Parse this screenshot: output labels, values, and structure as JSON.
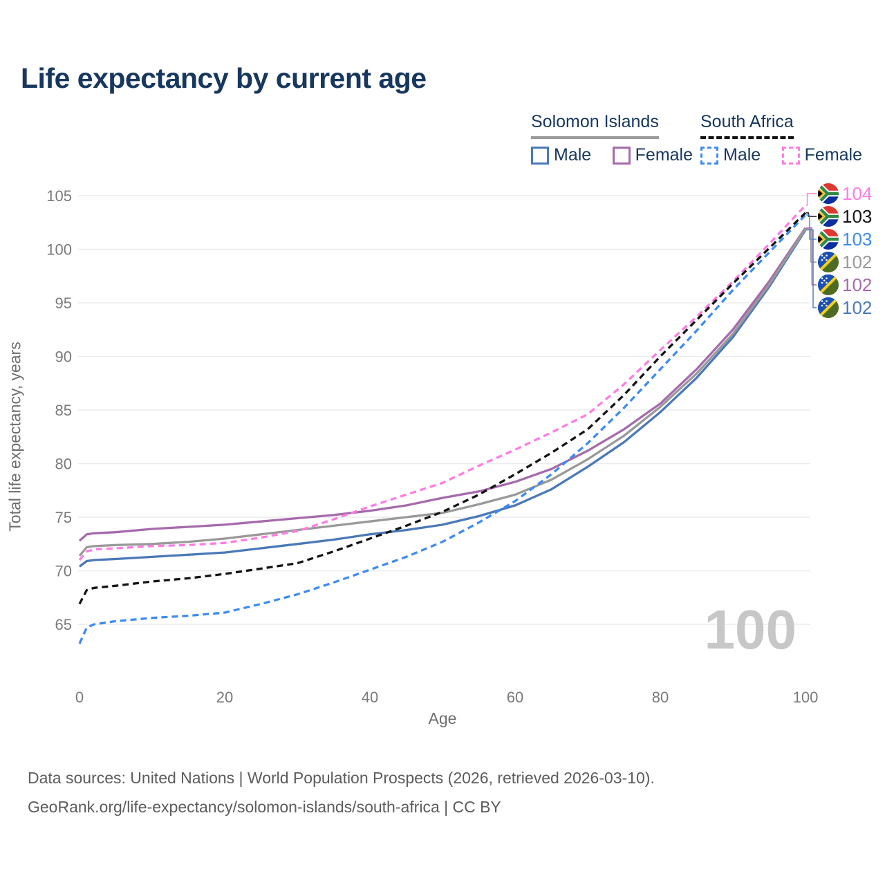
{
  "header": {
    "title": "Life expectancy by current age"
  },
  "legend": {
    "solomon_islands": {
      "title": "Solomon Islands",
      "male": "Male",
      "female": "Female"
    },
    "south_africa": {
      "title": "South Africa",
      "male": "Male",
      "female": "Female"
    }
  },
  "colors": {
    "title": "#17375e",
    "grid": "#ececec",
    "tick_text": "#7a7a7a",
    "watermark": "#c7c7c7",
    "si_male": "#4a79b8",
    "si_female": "#a66aac",
    "si_total": "#999999",
    "sa_male": "#3d8bf2",
    "sa_female": "#ff7ce3",
    "sa_total": "#141414"
  },
  "chart_data": {
    "type": "line",
    "title": "Life expectancy by current age",
    "xlabel": "Age",
    "ylabel": "Total life expectancy, years",
    "xlim": [
      0,
      100
    ],
    "ylim": [
      63,
      105.5
    ],
    "x_ticks": [
      0,
      20,
      40,
      60,
      80,
      100
    ],
    "y_ticks": [
      65,
      70,
      75,
      80,
      85,
      90,
      95,
      100,
      105
    ],
    "grid": "horizontal",
    "legend_position": "top-right",
    "age_watermark": "100",
    "x": [
      0,
      1,
      2,
      5,
      10,
      15,
      20,
      25,
      30,
      35,
      40,
      45,
      50,
      55,
      60,
      65,
      70,
      75,
      80,
      85,
      90,
      95,
      100
    ],
    "series": [
      {
        "id": "si_male",
        "name": "Solomon Islands — Male",
        "country": "solomon-islands",
        "sex": "male",
        "style": "solid",
        "color": "#4a79b8",
        "end_label": "102",
        "values": [
          70.4,
          70.9,
          71.0,
          71.1,
          71.3,
          71.5,
          71.7,
          72.1,
          72.5,
          72.9,
          73.4,
          73.8,
          74.3,
          75.1,
          76.1,
          77.6,
          79.7,
          82.0,
          84.8,
          88.0,
          91.8,
          96.5,
          101.8
        ]
      },
      {
        "id": "si_female",
        "name": "Solomon Islands — Female",
        "country": "solomon-islands",
        "sex": "female",
        "style": "solid",
        "color": "#a66aac",
        "end_label": "102",
        "values": [
          72.8,
          73.4,
          73.5,
          73.6,
          73.9,
          74.1,
          74.3,
          74.6,
          74.9,
          75.2,
          75.6,
          76.1,
          76.8,
          77.4,
          78.3,
          79.5,
          81.2,
          83.2,
          85.6,
          88.8,
          92.5,
          97.0,
          102.0
        ]
      },
      {
        "id": "si_total",
        "name": "Solomon Islands — Total",
        "country": "solomon-islands",
        "sex": "total",
        "style": "solid",
        "color": "#999999",
        "end_label": "102",
        "values": [
          71.4,
          72.2,
          72.3,
          72.4,
          72.5,
          72.7,
          73.0,
          73.4,
          73.8,
          74.2,
          74.6,
          75.0,
          75.4,
          76.2,
          77.1,
          78.5,
          80.4,
          82.6,
          85.3,
          88.4,
          92.1,
          96.7,
          101.9
        ]
      },
      {
        "id": "sa_male",
        "name": "South Africa — Male",
        "country": "south-africa",
        "sex": "male",
        "style": "dashed",
        "color": "#3d8bf2",
        "end_label": "103",
        "values": [
          63.2,
          64.7,
          65.0,
          65.3,
          65.6,
          65.8,
          66.1,
          66.9,
          67.8,
          68.9,
          70.1,
          71.3,
          72.7,
          74.5,
          76.5,
          79.0,
          81.9,
          85.2,
          88.8,
          92.4,
          96.2,
          99.7,
          103.2
        ]
      },
      {
        "id": "sa_female",
        "name": "South Africa — Female",
        "country": "south-africa",
        "sex": "female",
        "style": "dashed",
        "color": "#ff7ce3",
        "end_label": "104",
        "values": [
          71.0,
          71.8,
          72.0,
          72.1,
          72.3,
          72.4,
          72.6,
          73.1,
          73.7,
          74.8,
          76.0,
          77.1,
          78.2,
          79.8,
          81.3,
          82.9,
          84.6,
          87.4,
          90.6,
          93.7,
          97.0,
          100.5,
          104.1
        ]
      },
      {
        "id": "sa_total",
        "name": "South Africa — Total",
        "country": "south-africa",
        "sex": "total",
        "style": "dashed",
        "color": "#141414",
        "end_label": "103",
        "values": [
          66.9,
          68.2,
          68.4,
          68.6,
          69.0,
          69.3,
          69.7,
          70.2,
          70.7,
          71.8,
          73.0,
          74.2,
          75.5,
          77.1,
          79.0,
          81.0,
          83.2,
          86.4,
          90.0,
          93.4,
          96.8,
          100.1,
          103.4
        ]
      }
    ],
    "end_label_order": [
      "sa_female",
      "sa_total",
      "sa_male",
      "si_total",
      "si_female",
      "si_male"
    ]
  },
  "footer": {
    "line1": "Data sources: United Nations | World Population Prospects (2026, retrieved 2026-03-10).",
    "line2": "GeoRank.org/life-expectancy/solomon-islands/south-africa | CC BY"
  }
}
